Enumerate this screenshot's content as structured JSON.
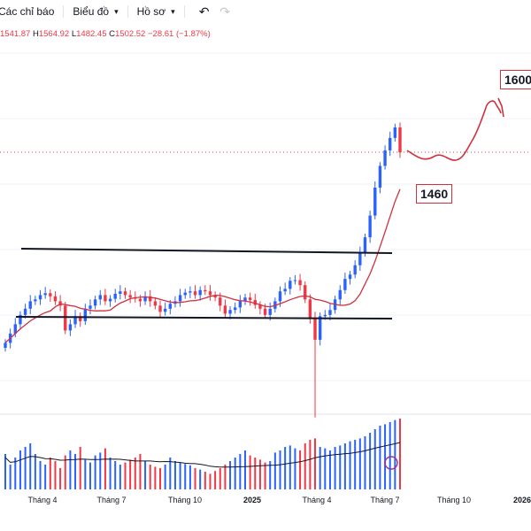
{
  "toolbar": {
    "indicators_label": "Các chỉ báo",
    "chart_type_label": "Biểu đồ",
    "profile_label": "Hồ sơ",
    "undo_icon": "undo-icon",
    "redo_icon": "redo-icon"
  },
  "ohlc": {
    "open": "1541.87",
    "high": "1564.92",
    "low": "1482.45",
    "close": "1502.52",
    "change": "−28.61 (−1.87%)"
  },
  "annotations": {
    "target_high": "1600",
    "target_ma": "1460"
  },
  "x_axis": {
    "labels": [
      "Tháng 4",
      "Tháng 7",
      "Tháng 10",
      "2025",
      "Tháng 4",
      "Tháng 7",
      "Tháng 10",
      "2026"
    ]
  },
  "colors": {
    "up": "#2962ff",
    "down": "#f23645",
    "ma": "#d0313d",
    "volume_ma": "#131722",
    "annotation": "#d0313d"
  },
  "chart_data": {
    "type": "candlestick",
    "closes": [
      1195,
      1210,
      1225,
      1240,
      1250,
      1262,
      1265,
      1272,
      1275,
      1270,
      1262,
      1255,
      1215,
      1225,
      1238,
      1230,
      1250,
      1255,
      1265,
      1272,
      1262,
      1266,
      1274,
      1278,
      1272,
      1268,
      1266,
      1262,
      1270,
      1262,
      1255,
      1245,
      1250,
      1258,
      1262,
      1272,
      1276,
      1278,
      1272,
      1280,
      1278,
      1272,
      1268,
      1255,
      1242,
      1248,
      1252,
      1262,
      1268,
      1264,
      1256,
      1250,
      1240,
      1250,
      1262,
      1278,
      1282,
      1295,
      1296,
      1288,
      1265,
      1235,
      1200,
      1238,
      1240,
      1248,
      1265,
      1280,
      1298,
      1305,
      1320,
      1340,
      1365,
      1400,
      1445,
      1480,
      1505,
      1525,
      1542,
      1502
    ],
    "volume": [
      50,
      35,
      45,
      55,
      60,
      65,
      50,
      40,
      35,
      45,
      40,
      30,
      48,
      55,
      50,
      60,
      42,
      38,
      48,
      52,
      58,
      45,
      40,
      35,
      38,
      42,
      45,
      50,
      40,
      35,
      32,
      30,
      35,
      45,
      40,
      38,
      36,
      34,
      30,
      28,
      25,
      22,
      26,
      30,
      35,
      40,
      45,
      50,
      55,
      48,
      45,
      42,
      38,
      40,
      52,
      55,
      60,
      62,
      58,
      55,
      65,
      70,
      72,
      60,
      58,
      55,
      60,
      62,
      65,
      68,
      70,
      72,
      75,
      80,
      85,
      90,
      92,
      95,
      98,
      100
    ],
    "events": {
      "low_wick_index": 62,
      "low_value": 1075
    }
  }
}
